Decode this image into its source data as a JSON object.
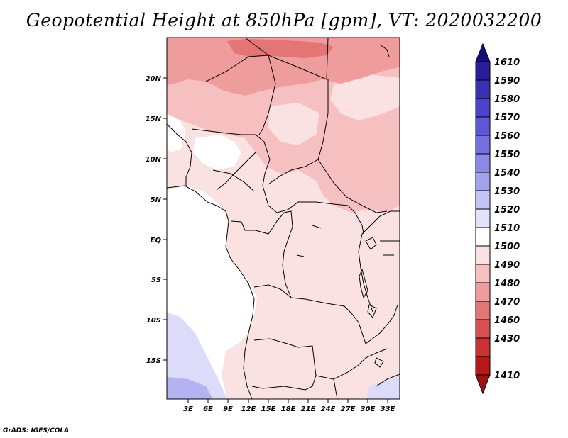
{
  "title": "Geopotential Height at 850hPa [gpm], VT: 2020032200",
  "credit": "GrADS: IGES/COLA",
  "map": {
    "x_ticks": [
      "3E",
      "6E",
      "9E",
      "12E",
      "15E",
      "18E",
      "21E",
      "24E",
      "27E",
      "30E",
      "33E"
    ],
    "y_ticks": [
      "20N",
      "15N",
      "10N",
      "5N",
      "EQ",
      "5S",
      "10S",
      "15S"
    ]
  },
  "colorbar": {
    "levels": [
      "1610",
      "1590",
      "1580",
      "1570",
      "1560",
      "1550",
      "1540",
      "1530",
      "1520",
      "1510",
      "1500",
      "1490",
      "1480",
      "1470",
      "1460",
      "1430",
      "1410"
    ],
    "colors": [
      "#1a0e7a",
      "#2a1d9a",
      "#3b2fb4",
      "#4c43c8",
      "#5f58d6",
      "#7470e0",
      "#8a88e8",
      "#a3a2ef",
      "#c4c4f5",
      "#e2e2fb",
      "#fbe2e2",
      "#f7c0c0",
      "#ef9c9c",
      "#e37575",
      "#d65252",
      "#c93333",
      "#b91818"
    ]
  }
}
